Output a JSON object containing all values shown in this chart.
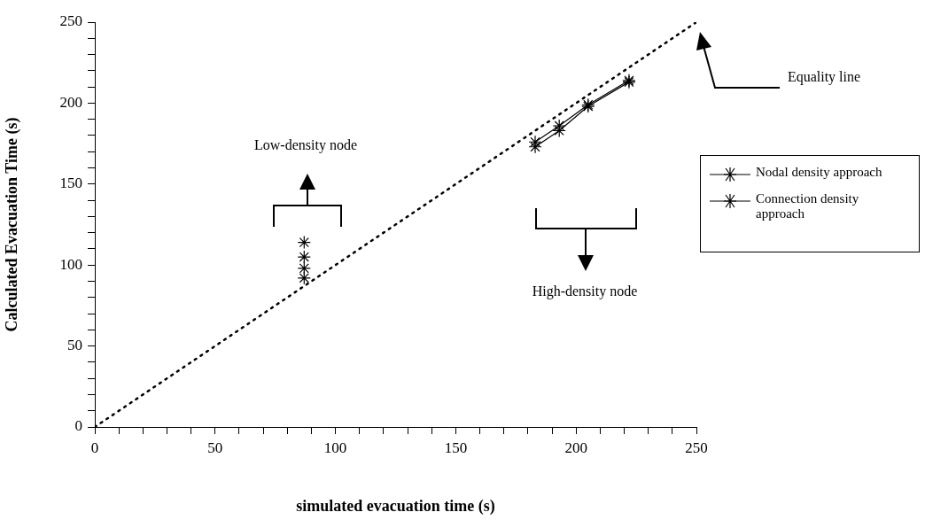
{
  "chart_data": {
    "type": "scatter",
    "xlabel": "simulated evacuation time (s)",
    "ylabel": "Calculated Evacuation Time (s)",
    "xlim": [
      0,
      250
    ],
    "ylim": [
      0,
      250
    ],
    "xticks": [
      0,
      {
        "value": 10,
        "label": null
      },
      {
        "value": 20,
        "label": null
      },
      {
        "value": 30,
        "label": null
      },
      {
        "value": 40,
        "label": null
      },
      50,
      {
        "value": 60,
        "label": null
      },
      {
        "value": 70,
        "label": null
      },
      {
        "value": 80,
        "label": null
      },
      {
        "value": 90,
        "label": null
      },
      100,
      {
        "value": 110,
        "label": null
      },
      {
        "value": 120,
        "label": null
      },
      {
        "value": 130,
        "label": null
      },
      {
        "value": 140,
        "label": null
      },
      150,
      {
        "value": 160,
        "label": null
      },
      {
        "value": 170,
        "label": null
      },
      {
        "value": 180,
        "label": null
      },
      {
        "value": 190,
        "label": null
      },
      200,
      {
        "value": 210,
        "label": null
      },
      {
        "value": 220,
        "label": null
      },
      {
        "value": 230,
        "label": null
      },
      {
        "value": 240,
        "label": null
      },
      250
    ],
    "yticks": [
      0,
      {
        "value": 10,
        "label": null
      },
      {
        "value": 20,
        "label": null
      },
      {
        "value": 30,
        "label": null
      },
      {
        "value": 40,
        "label": null
      },
      50,
      {
        "value": 60,
        "label": null
      },
      {
        "value": 70,
        "label": null
      },
      {
        "value": 80,
        "label": null
      },
      {
        "value": 90,
        "label": null
      },
      100,
      {
        "value": 110,
        "label": null
      },
      {
        "value": 120,
        "label": null
      },
      {
        "value": 130,
        "label": null
      },
      {
        "value": 140,
        "label": null
      },
      150,
      {
        "value": 160,
        "label": null
      },
      {
        "value": 170,
        "label": null
      },
      {
        "value": 180,
        "label": null
      },
      {
        "value": 190,
        "label": null
      },
      200,
      {
        "value": 210,
        "label": null
      },
      {
        "value": 220,
        "label": null
      },
      {
        "value": 230,
        "label": null
      },
      {
        "value": 240,
        "label": null
      },
      250
    ],
    "legend": "right",
    "series": [
      {
        "type": "line",
        "color": "#000000",
        "marker": "none",
        "line_style": "dotted",
        "x": [
          0,
          250
        ],
        "values": [
          0,
          250
        ]
      },
      {
        "type": "line",
        "name": "Nodal density approach",
        "color": "#000000",
        "marker": "cross",
        "line_style": "solid",
        "x": [
          183,
          193,
          205,
          222
        ],
        "values": [
          176,
          186,
          199,
          214
        ]
      },
      {
        "type": "line",
        "name": "Connection density approach",
        "color": "#000000",
        "marker": "cross",
        "line_style": "solid",
        "x": [
          183,
          193,
          205,
          222
        ],
        "values": [
          173,
          183,
          198,
          213
        ]
      },
      {
        "type": "scatter",
        "color": "#000000",
        "marker": "cross",
        "x": [
          87,
          87,
          87,
          87
        ],
        "values": [
          114,
          105,
          98,
          92
        ]
      }
    ],
    "annotations": [
      "Low-density node",
      "High-density node",
      "Equality line"
    ]
  }
}
